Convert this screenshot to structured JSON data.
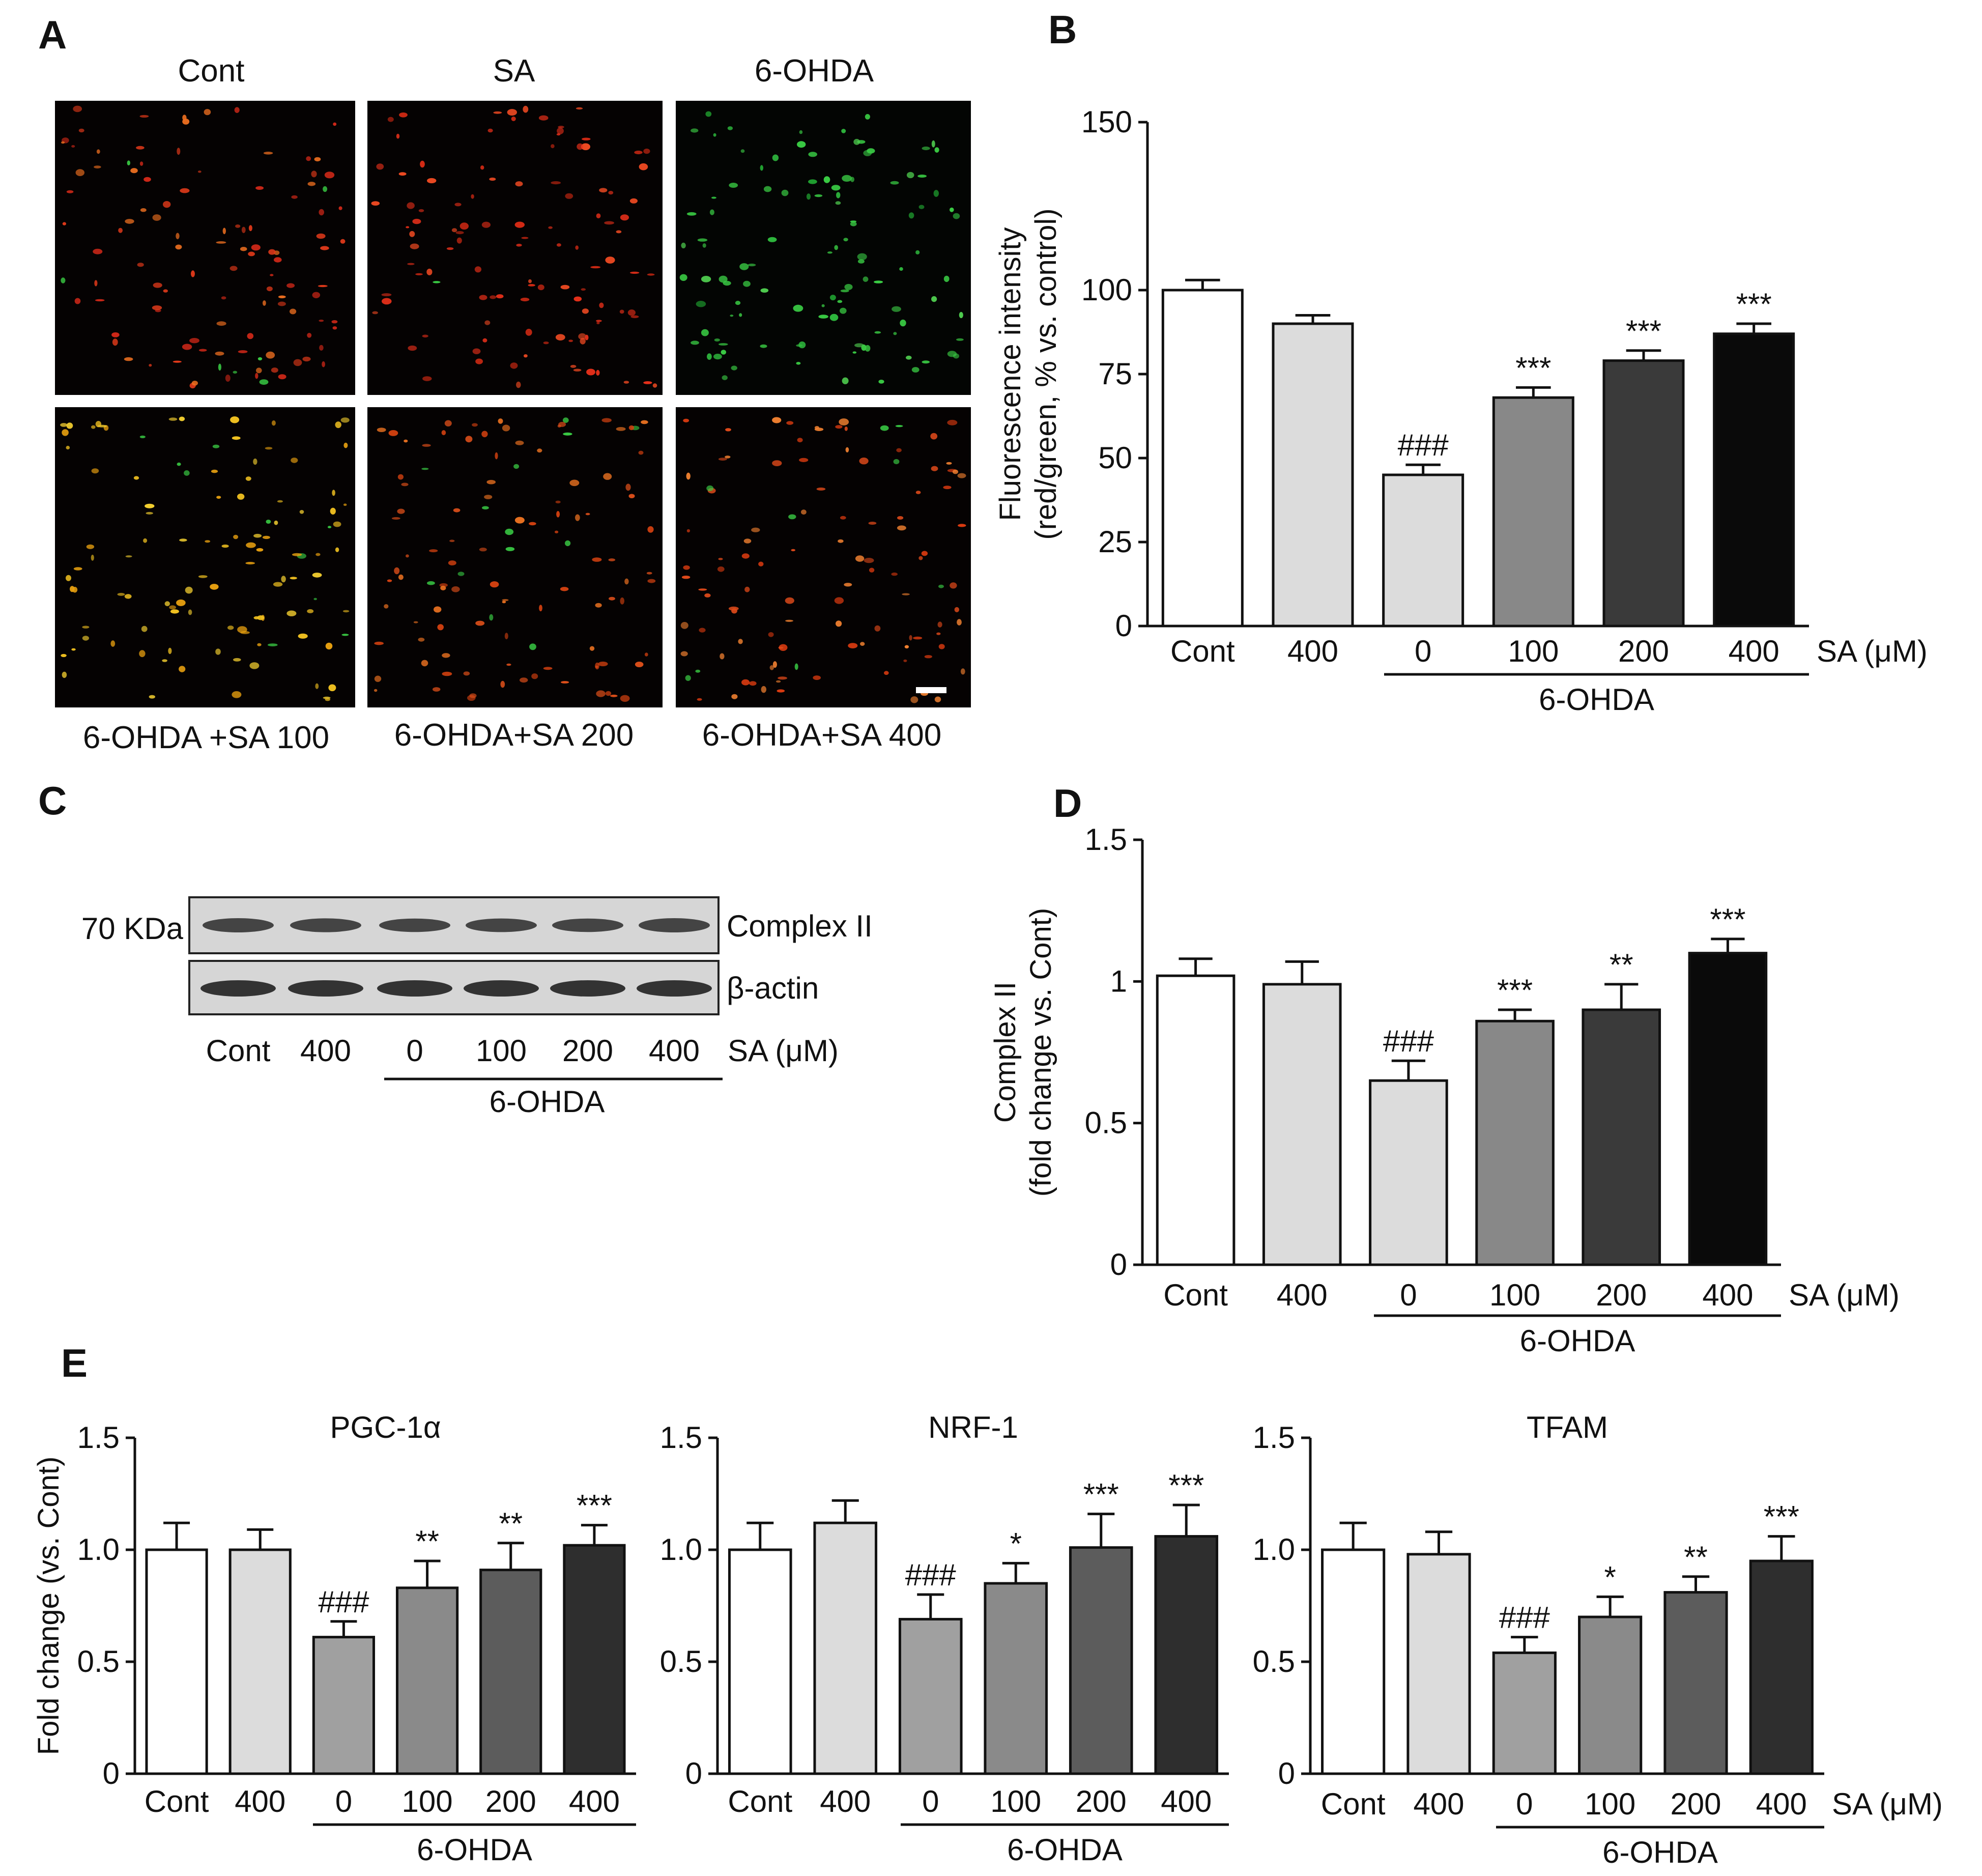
{
  "panel_letters": {
    "A": "A",
    "B": "B",
    "C": "C",
    "D": "D",
    "E": "E"
  },
  "panel_a": {
    "top_labels": [
      "Cont",
      "SA",
      "6-OHDA"
    ],
    "bottom_labels": [
      "6-OHDA +SA 100",
      "6-OHDA+SA 200",
      "6-OHDA+SA 400"
    ]
  },
  "panel_c": {
    "mw_label": "70 KDa",
    "band_labels": [
      "Complex II",
      "β-actin"
    ],
    "lane_labels": [
      "Cont",
      "400",
      "0",
      "100",
      "200",
      "400"
    ],
    "unit_label": "SA (μM)",
    "group_label": "6-OHDA",
    "band_colors": {
      "blot_bg": "#d8d8d8",
      "band": "#2a2a2a"
    }
  },
  "chart_data": [
    {
      "id": "B",
      "type": "bar",
      "categories": [
        "Cont",
        "400",
        "0",
        "100",
        "200",
        "400"
      ],
      "values": [
        100,
        90,
        45,
        68,
        79,
        87
      ],
      "errors": [
        3,
        2.5,
        3,
        3,
        3,
        3
      ],
      "annotations": [
        "",
        "",
        "###",
        "***",
        "***",
        "***"
      ],
      "ylabel": [
        "Fluorescence intensity",
        "(red/green, % vs. control)"
      ],
      "yticks": [
        0,
        25,
        50,
        75,
        100,
        150
      ],
      "ylim": [
        0,
        150
      ],
      "xunit": "SA (μM)",
      "group_label": "6-OHDA",
      "colors": [
        "#ffffff",
        "#dcdcdc",
        "#dcdcdc",
        "#888888",
        "#3a3a3a",
        "#0a0a0a"
      ]
    },
    {
      "id": "D",
      "type": "bar",
      "categories": [
        "Cont",
        "400",
        "0",
        "100",
        "200",
        "400"
      ],
      "values": [
        1.02,
        0.99,
        0.65,
        0.86,
        0.9,
        1.1
      ],
      "errors": [
        0.06,
        0.08,
        0.07,
        0.04,
        0.09,
        0.05
      ],
      "annotations": [
        "",
        "",
        "###",
        "***",
        "**",
        "***"
      ],
      "ylabel": [
        "Complex II",
        "(fold change vs. Cont)"
      ],
      "yticks": [
        0,
        0.5,
        1,
        1.5
      ],
      "yticklabels": [
        "0",
        "0.5",
        "1",
        "1.5"
      ],
      "ylim": [
        0,
        1.5
      ],
      "xunit": "SA (μM)",
      "group_label": "6-OHDA",
      "colors": [
        "#ffffff",
        "#dcdcdc",
        "#dcdcdc",
        "#888888",
        "#3a3a3a",
        "#0a0a0a"
      ]
    },
    {
      "id": "E1",
      "type": "bar",
      "title": "PGC-1α",
      "categories": [
        "Cont",
        "400",
        "0",
        "100",
        "200",
        "400"
      ],
      "values": [
        1.0,
        1.0,
        0.61,
        0.83,
        0.91,
        1.02
      ],
      "errors": [
        0.12,
        0.09,
        0.07,
        0.12,
        0.12,
        0.09
      ],
      "annotations": [
        "",
        "",
        "###",
        "**",
        "**",
        "***"
      ],
      "ylabel": [
        "Fold change (vs. Cont)"
      ],
      "yticks": [
        0,
        0.5,
        1.0,
        1.5
      ],
      "yticklabels": [
        "0",
        "0.5",
        "1.0",
        "1.5"
      ],
      "ylim": [
        0,
        1.5
      ],
      "xunit": "",
      "group_label": "6-OHDA",
      "colors": [
        "#ffffff",
        "#dcdcdc",
        "#a0a0a0",
        "#8a8a8a",
        "#5c5c5c",
        "#2e2e2e"
      ]
    },
    {
      "id": "E2",
      "type": "bar",
      "title": "NRF-1",
      "categories": [
        "Cont",
        "400",
        "0",
        "100",
        "200",
        "400"
      ],
      "values": [
        1.0,
        1.12,
        0.69,
        0.85,
        1.01,
        1.06
      ],
      "errors": [
        0.12,
        0.1,
        0.11,
        0.09,
        0.15,
        0.14
      ],
      "annotations": [
        "",
        "",
        "###",
        "*",
        "***",
        "***"
      ],
      "ylabel": [],
      "yticks": [
        0,
        0.5,
        1.0,
        1.5
      ],
      "yticklabels": [
        "0",
        "0.5",
        "1.0",
        "1.5"
      ],
      "ylim": [
        0,
        1.5
      ],
      "xunit": "",
      "group_label": "6-OHDA",
      "colors": [
        "#ffffff",
        "#dcdcdc",
        "#a0a0a0",
        "#8a8a8a",
        "#5c5c5c",
        "#2e2e2e"
      ]
    },
    {
      "id": "E3",
      "type": "bar",
      "title": "TFAM",
      "categories": [
        "Cont",
        "400",
        "0",
        "100",
        "200",
        "400"
      ],
      "values": [
        1.0,
        0.98,
        0.54,
        0.7,
        0.81,
        0.95
      ],
      "errors": [
        0.12,
        0.1,
        0.07,
        0.09,
        0.07,
        0.11
      ],
      "annotations": [
        "",
        "",
        "###",
        "*",
        "**",
        "***"
      ],
      "ylabel": [],
      "yticks": [
        0,
        0.5,
        1.0,
        1.5
      ],
      "yticklabels": [
        "0",
        "0.5",
        "1.0",
        "1.5"
      ],
      "ylim": [
        0,
        1.5
      ],
      "xunit": "SA (μM)",
      "group_label": "6-OHDA",
      "colors": [
        "#ffffff",
        "#dcdcdc",
        "#a0a0a0",
        "#8a8a8a",
        "#5c5c5c",
        "#2e2e2e"
      ]
    }
  ]
}
